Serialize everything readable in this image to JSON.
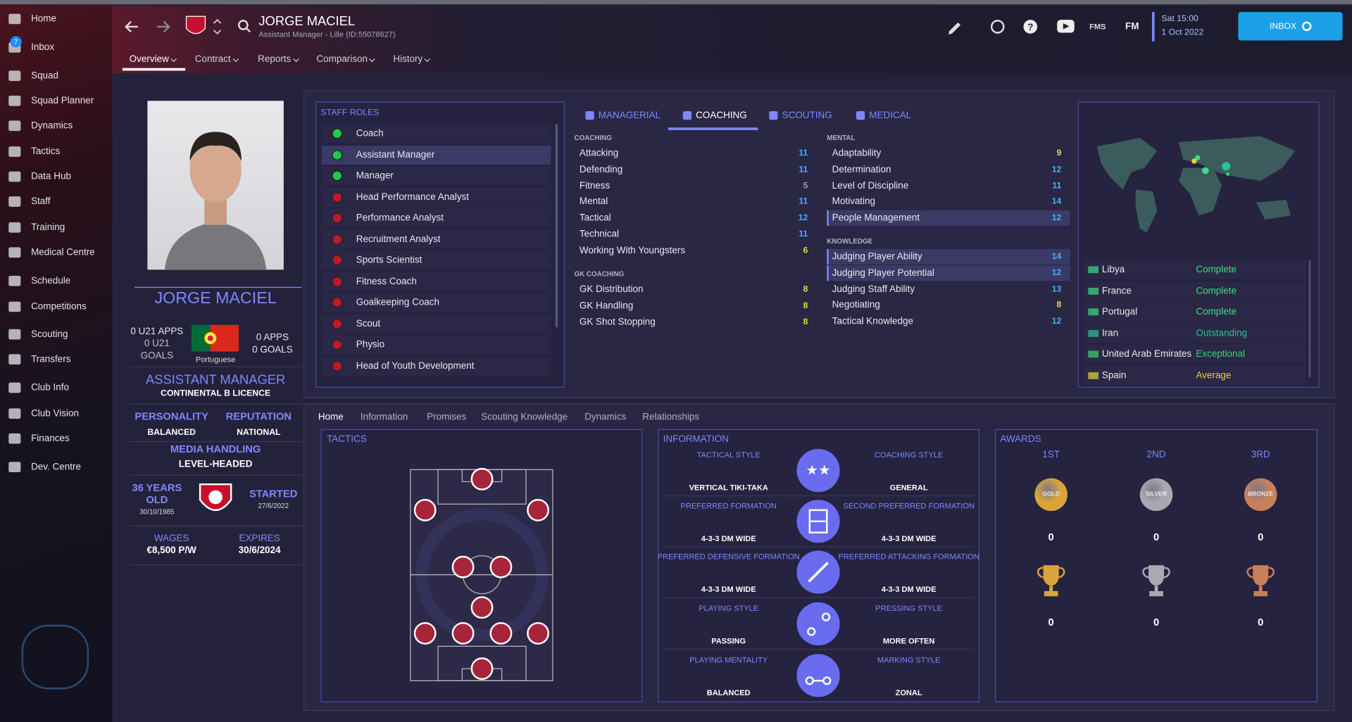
{
  "sidebar": {
    "items": [
      "Home",
      "Inbox",
      "Squad",
      "Squad Planner",
      "Dynamics",
      "Tactics",
      "Data Hub",
      "Staff",
      "Training",
      "Medical Centre",
      "Schedule",
      "Competitions",
      "Scouting",
      "Transfers",
      "Club Info",
      "Club Vision",
      "Finances",
      "Dev. Centre"
    ],
    "inbox_badge": 7
  },
  "header": {
    "name": "JORGE MACIEL",
    "subtitle": "Assistant Manager - Lille (ID:55078627)",
    "icons": [
      "FMS",
      "FM"
    ],
    "date": "Sat 15:00",
    "day": "1 Oct 2022",
    "inbox": "INBOX",
    "tabs": [
      "Overview",
      "Contract",
      "Reports",
      "Comparison",
      "History"
    ]
  },
  "profile": {
    "name": "JORGE MACIEL",
    "u21_apps": "0 U21 APPS",
    "u21_goals": "0 U21 GOALS",
    "nationality": "Portuguese",
    "apps": "0 APPS",
    "goals": "0 GOALS",
    "role": "ASSISTANT MANAGER",
    "licence": "CONTINENTAL B LICENCE",
    "personality_label": "PERSONALITY",
    "personality": "BALANCED",
    "reputation_label": "REPUTATION",
    "reputation": "NATIONAL",
    "media_label": "MEDIA HANDLING",
    "media": "LEVEL-HEADED",
    "age": "36 YEARS OLD",
    "dob": "30/10/1985",
    "started_label": "STARTED",
    "started": "27/6/2022",
    "wages_label": "WAGES",
    "wages": "€8,500 P/W",
    "expires_label": "EXPIRES",
    "expires": "30/6/2024"
  },
  "staff_roles": {
    "title": "STAFF ROLES",
    "roles": [
      {
        "name": "Coach",
        "color": "#22c84a"
      },
      {
        "name": "Assistant Manager",
        "color": "#22c84a",
        "highlight": true
      },
      {
        "name": "Manager",
        "color": "#22c84a"
      },
      {
        "name": "Head Performance Analyst",
        "color": "#c0182a"
      },
      {
        "name": "Performance Analyst",
        "color": "#c0182a"
      },
      {
        "name": "Recruitment Analyst",
        "color": "#c0182a"
      },
      {
        "name": "Sports Scientist",
        "color": "#c0182a"
      },
      {
        "name": "Fitness Coach",
        "color": "#c0182a"
      },
      {
        "name": "Goalkeeping Coach",
        "color": "#c0182a"
      },
      {
        "name": "Scout",
        "color": "#c0182a"
      },
      {
        "name": "Physio",
        "color": "#c0182a"
      },
      {
        "name": "Head of Youth Development",
        "color": "#c0182a"
      }
    ]
  },
  "attribute_tabs": [
    "MANAGERIAL",
    "COACHING",
    "SCOUTING",
    "MEDICAL"
  ],
  "attributes": {
    "coaching": {
      "title": "COACHING",
      "rows": [
        {
          "name": "Attacking",
          "value": 11
        },
        {
          "name": "Defending",
          "value": 11
        },
        {
          "name": "Fitness",
          "value": 5
        },
        {
          "name": "Mental",
          "value": 11
        },
        {
          "name": "Tactical",
          "value": 12
        },
        {
          "name": "Technical",
          "value": 11
        },
        {
          "name": "Working With Youngsters",
          "value": 6
        }
      ]
    },
    "gk_coaching": {
      "title": "GK COACHING",
      "rows": [
        {
          "name": "GK Distribution",
          "value": 8
        },
        {
          "name": "GK Handling",
          "value": 8
        },
        {
          "name": "GK Shot Stopping",
          "value": 8
        }
      ]
    },
    "mental": {
      "title": "MENTAL",
      "rows": [
        {
          "name": "Adaptability",
          "value": 9
        },
        {
          "name": "Determination",
          "value": 12
        },
        {
          "name": "Level of Discipline",
          "value": 11
        },
        {
          "name": "Motivating",
          "value": 14
        },
        {
          "name": "People Management",
          "value": 12,
          "highlight": true
        }
      ]
    },
    "knowledge": {
      "title": "KNOWLEDGE",
      "rows": [
        {
          "name": "Judging Player Ability",
          "value": 14,
          "highlight": true
        },
        {
          "name": "Judging Player Potential",
          "value": 12,
          "highlight": true
        },
        {
          "name": "Judging Staff Ability",
          "value": 13
        },
        {
          "name": "Negotiating",
          "value": 8
        },
        {
          "name": "Tactical Knowledge",
          "value": 12
        }
      ]
    }
  },
  "nation_knowledge": [
    {
      "country": "Libya",
      "level": "Complete",
      "color": "#3ddc84"
    },
    {
      "country": "France",
      "level": "Complete",
      "color": "#3ddc84"
    },
    {
      "country": "Portugal",
      "level": "Complete",
      "color": "#3ddc84"
    },
    {
      "country": "Iran",
      "level": "Outstanding",
      "color": "#2fc08c"
    },
    {
      "country": "United Arab Emirates",
      "level": "Exceptional",
      "color": "#36d66f"
    },
    {
      "country": "Spain",
      "level": "Average",
      "color": "#e8d23a"
    }
  ],
  "bottom_tabs": [
    "Home",
    "Information",
    "Promises",
    "Scouting Knowledge",
    "Dynamics",
    "Relationships"
  ],
  "tactics": {
    "title": "TACTICS"
  },
  "information": {
    "title": "INFORMATION",
    "items": [
      {
        "label": "TACTICAL STYLE",
        "value": "VERTICAL TIKI-TAKA"
      },
      {
        "label": "COACHING STYLE",
        "value": "GENERAL"
      },
      {
        "label": "PREFERRED FORMATION",
        "value": "4-3-3 DM WIDE"
      },
      {
        "label": "SECOND PREFERRED FORMATION",
        "value": "4-3-3 DM WIDE"
      },
      {
        "label": "PREFERRED DEFENSIVE FORMATION",
        "value": "4-3-3 DM WIDE"
      },
      {
        "label": "PREFERRED ATTACKING FORMATION",
        "value": "4-3-3 DM WIDE"
      },
      {
        "label": "PLAYING STYLE",
        "value": "PASSING"
      },
      {
        "label": "PRESSING STYLE",
        "value": "MORE OFTEN"
      },
      {
        "label": "PLAYING MENTALITY",
        "value": "BALANCED"
      },
      {
        "label": "MARKING STYLE",
        "value": "ZONAL"
      }
    ]
  },
  "awards": {
    "title": "AWARDS",
    "places": [
      "1ST",
      "2ND",
      "3RD"
    ],
    "medals": [
      "GOLD",
      "SILVER",
      "BRONZE"
    ],
    "medal_counts": [
      0,
      0,
      0
    ],
    "trophy_counts": [
      0,
      0,
      0
    ]
  }
}
